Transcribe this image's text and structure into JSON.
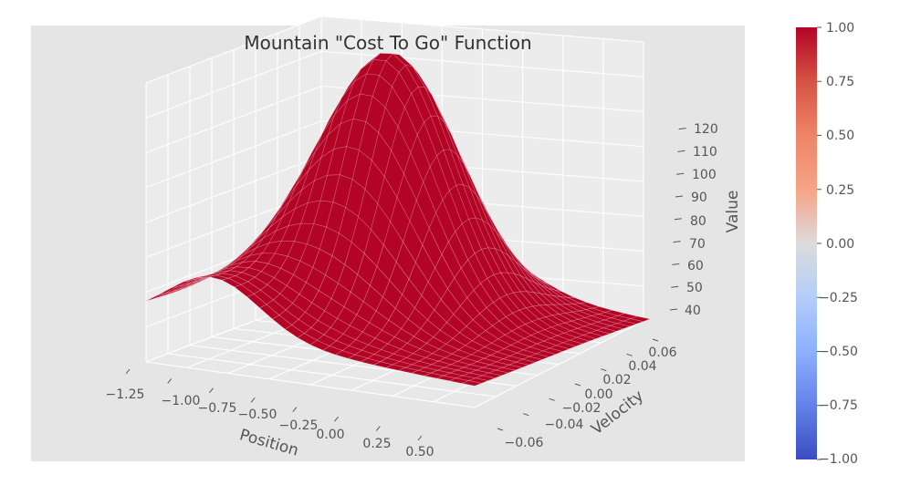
{
  "chart_data": {
    "type": "surface",
    "title": "Mountain \"Cost To Go\" Function",
    "xlabel": "Position",
    "ylabel": "Velocity",
    "zlabel": "Value",
    "x_ticks": [
      "−1.25",
      "−1.00",
      "−0.75",
      "−0.50",
      "−0.25",
      "0.00",
      "0.25",
      "0.50"
    ],
    "y_ticks": [
      "−0.06",
      "−0.04",
      "−0.02",
      "0.00",
      "0.02",
      "0.04",
      "0.06"
    ],
    "z_ticks": [
      "40",
      "50",
      "60",
      "70",
      "80",
      "90",
      "100",
      "110",
      "120"
    ],
    "xlim": [
      -1.25,
      0.5
    ],
    "ylim": [
      -0.07,
      0.07
    ],
    "zlim": [
      35,
      125
    ],
    "surface_color": "#b40426",
    "colormap": "coolwarm",
    "colorbar": {
      "ticks": [
        "1.00",
        "0.75",
        "0.50",
        "0.25",
        "0.00",
        "−0.25",
        "−0.50",
        "−0.75",
        "−1.00"
      ],
      "range": [
        -1.0,
        1.0
      ]
    },
    "surface_estimates": {
      "peak": {
        "position": -0.5,
        "velocity": 0.0,
        "value": 120
      },
      "min": {
        "position": 0.5,
        "velocity": 0.07,
        "value": 38
      }
    },
    "grid": true,
    "style": "ggplot"
  }
}
